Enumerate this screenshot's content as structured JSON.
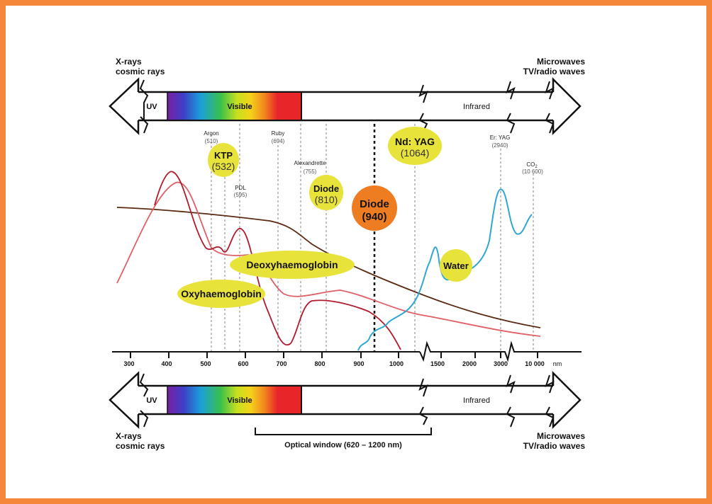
{
  "top_band": {
    "left_label_1": "X-rays",
    "left_label_2": "cosmic rays",
    "right_label_1": "Microwaves",
    "right_label_2": "TV/radio waves",
    "uv": "UV",
    "visible": "Visible",
    "infrared": "Infrared"
  },
  "bottom_band": {
    "left_label_1": "X-rays",
    "left_label_2": "cosmic rays",
    "right_label_1": "Microwaves",
    "right_label_2": "TV/radio waves",
    "uv": "UV",
    "visible": "Visible",
    "infrared": "Infrared",
    "optical_window": "Optical window (620 – 1200 nm)"
  },
  "lasers": {
    "argon": {
      "name": "Argon",
      "wl": "(510)"
    },
    "ktp": {
      "name": "KTP",
      "wl": "(532)"
    },
    "pdl": {
      "name": "PDL",
      "wl": "(595)"
    },
    "ruby": {
      "name": "Ruby",
      "wl": "(694)"
    },
    "alex": {
      "name": "Alexandrette",
      "wl": "(755)"
    },
    "diode810": {
      "name": "Diode",
      "wl": "(810)"
    },
    "diode940": {
      "name": "Diode",
      "wl": "(940)"
    },
    "ndyag": {
      "name": "Nd: YAG",
      "wl": "(1064)"
    },
    "eryag": {
      "name": "Er: YAG",
      "wl": "(2940)"
    },
    "co2": {
      "name": "CO",
      "sub": "2",
      "wl": "(10 600)"
    }
  },
  "chromophores": {
    "deoxy": "Deoxyhaemoglobin",
    "oxy": "Oxyhaemoglobin",
    "water": "Water"
  },
  "axis": {
    "ticks": [
      "300",
      "400",
      "500",
      "600",
      "700",
      "800",
      "900",
      "1000",
      "1500",
      "2000",
      "3000",
      "10 000"
    ],
    "unit": "nm"
  },
  "colors": {
    "border": "#f5873a",
    "highlight": "#e8e33a",
    "diode940": "#ee7d22",
    "oxy": "#b01c2e",
    "deoxy": "#e06068",
    "melanin": "#5a2a12",
    "water": "#2fa6d4"
  }
}
